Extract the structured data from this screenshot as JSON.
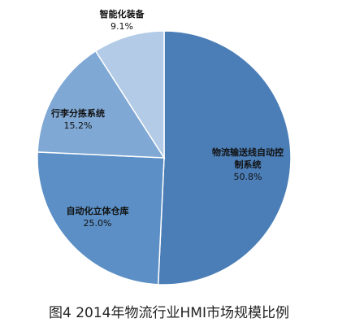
{
  "chart_data": {
    "type": "pie",
    "title": "图4 2014年物流行业HMI市场规模比例",
    "categories": [
      "物流输送线自动控制系统",
      "自动化立体仓库",
      "行李分拣系统",
      "智能化装备"
    ],
    "values": [
      50.8,
      25.0,
      15.2,
      9.1
    ],
    "value_labels": [
      "50.8%",
      "25.0%",
      "15.2%",
      "9.1%"
    ],
    "colors": [
      "#4b7eb7",
      "#5b8fc5",
      "#80a8d4",
      "#b3cbe6"
    ]
  }
}
